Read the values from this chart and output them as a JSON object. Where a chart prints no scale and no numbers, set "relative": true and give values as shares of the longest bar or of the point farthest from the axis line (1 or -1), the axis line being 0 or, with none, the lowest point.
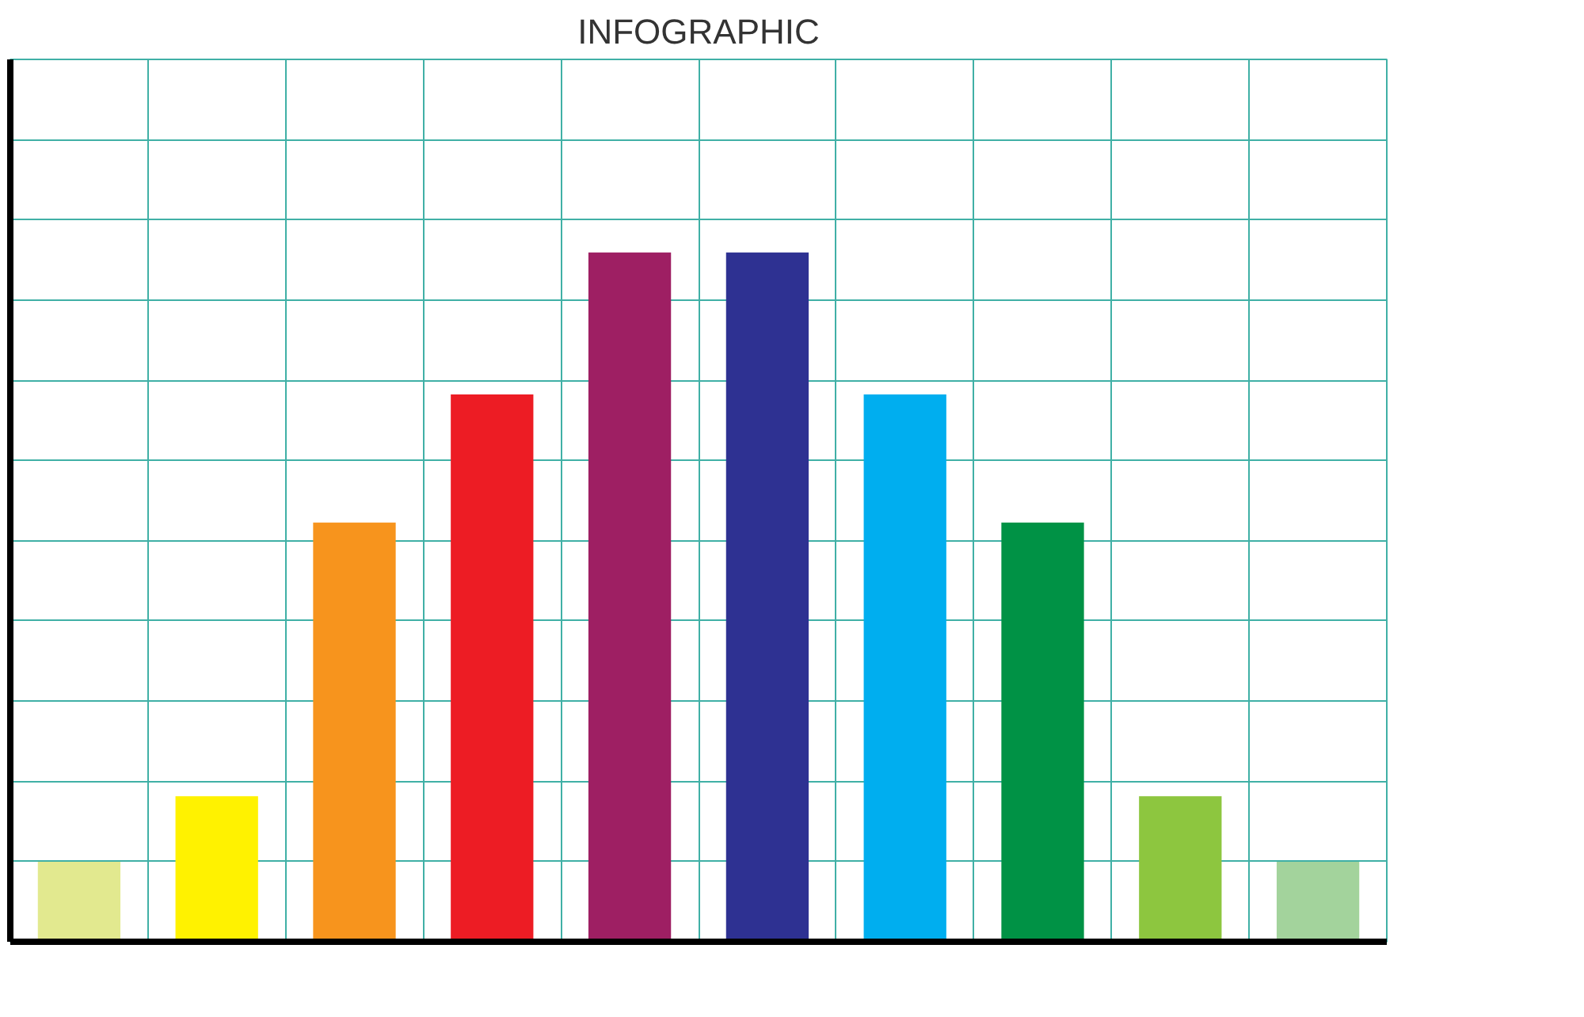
{
  "chart_data": {
    "type": "bar",
    "title": "INFOGRAPHIC",
    "relative": true,
    "grid": true,
    "categories": [
      null,
      null,
      null,
      null,
      null,
      null,
      null,
      null,
      null,
      null
    ],
    "values": [
      0.116,
      0.211,
      0.608,
      0.794,
      1,
      1,
      0.794,
      0.608,
      0.211,
      0.116
    ],
    "colors": [
      "#e2e98f",
      "#fff200",
      "#f7941d",
      "#ed1c24",
      "#9e1f63",
      "#2e3192",
      "#00aeef",
      "#009245",
      "#8dc63f",
      "#a3d39c"
    ]
  }
}
